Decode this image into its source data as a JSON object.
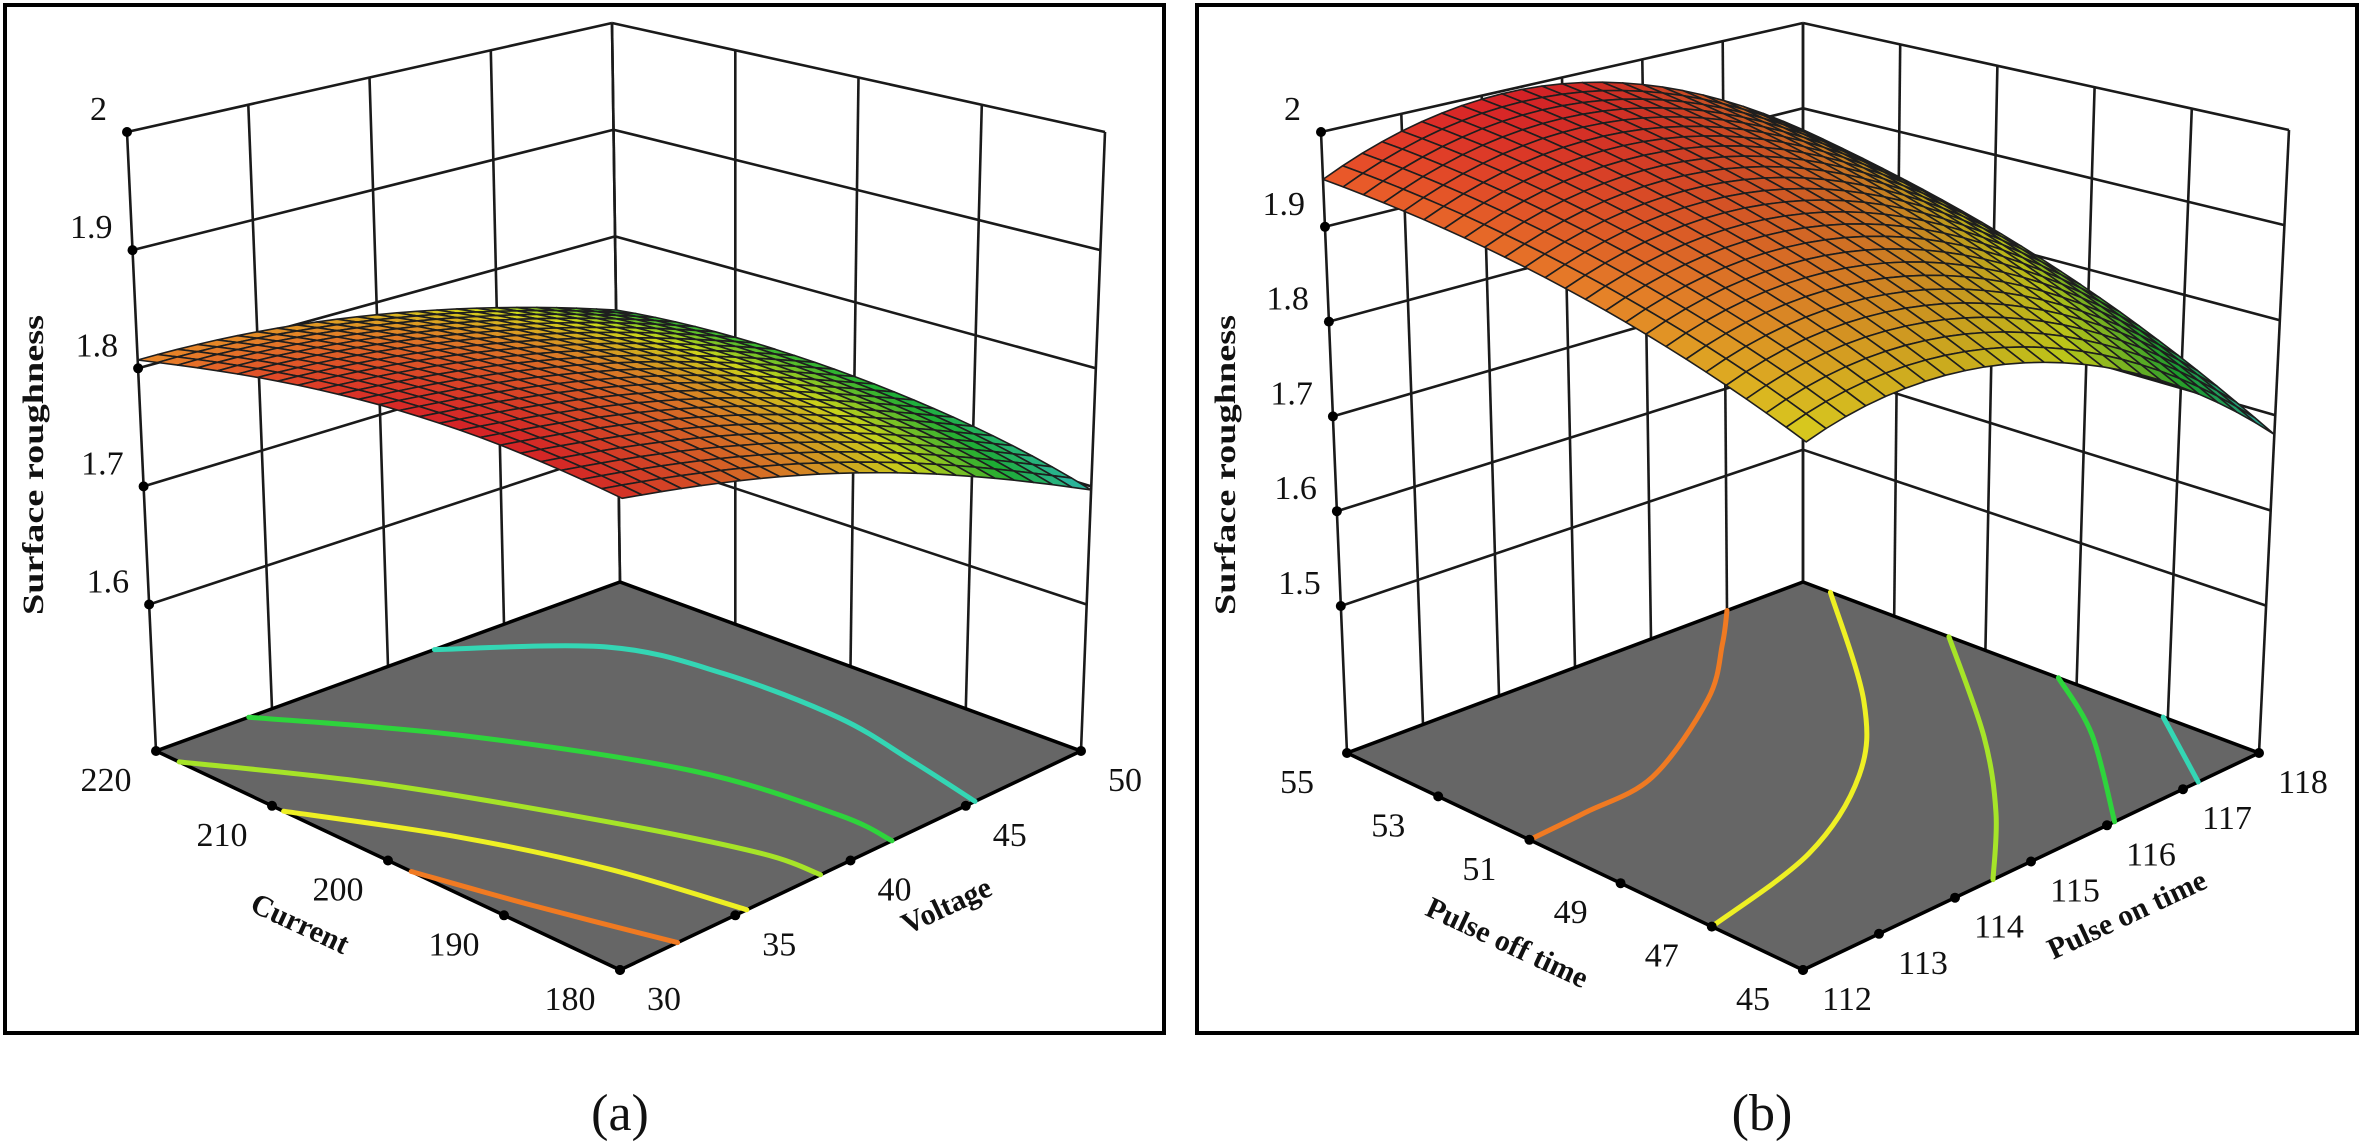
{
  "colormap": [
    "#35d8d0",
    "#22c83a",
    "#e6f01e",
    "#f2882a",
    "#e8242a"
  ],
  "chart_data": [
    {
      "type": "surface",
      "caption": "(a)",
      "zlabel": "Surface roughness",
      "xlabel": "Current",
      "ylabel": "Voltage",
      "x_ticks": [
        "180",
        "190",
        "200",
        "210",
        "220"
      ],
      "y_ticks": [
        "30",
        "35",
        "40",
        "45",
        "50"
      ],
      "z_ticks": [
        "1.6",
        "1.7",
        "1.8",
        "1.9",
        "2"
      ],
      "zlim": [
        1.476,
        2
      ],
      "grid": {
        "x": [
          180,
          190,
          200,
          210,
          220
        ],
        "y": [
          30,
          35,
          40,
          45,
          50
        ],
        "z": [
          [
            1.84,
            1.819,
            1.789,
            1.748,
            1.697
          ],
          [
            1.847,
            1.83,
            1.804,
            1.767,
            1.721
          ],
          [
            1.844,
            1.831,
            1.809,
            1.776,
            1.734
          ],
          [
            1.83,
            1.822,
            1.804,
            1.776,
            1.738
          ],
          [
            1.807,
            1.803,
            1.789,
            1.765,
            1.731
          ]
        ]
      },
      "contours": [
        {
          "color": "#f07a22",
          "points": [
            [
              198,
              30
            ],
            [
              189.7,
              31.1
            ],
            [
              180,
              32.5
            ]
          ]
        },
        {
          "color": "#eef024",
          "points": [
            [
              209,
              30
            ],
            [
              199.6,
              32.7
            ],
            [
              190,
              34.5
            ],
            [
              180,
              35.5
            ]
          ]
        },
        {
          "color": "#a6e428",
          "points": [
            [
              218,
              30
            ],
            [
              208,
              33.6
            ],
            [
              194.6,
              36.8
            ],
            [
              184.8,
              38.5
            ],
            [
              180,
              38.7
            ]
          ]
        },
        {
          "color": "#2ed43c",
          "points": [
            [
              220,
              34
            ],
            [
              209.5,
              38
            ],
            [
              196,
              41.2
            ],
            [
              185,
              42
            ],
            [
              180,
              41.8
            ]
          ]
        },
        {
          "color": "#34d6b4",
          "points": [
            [
              220,
              42
            ],
            [
              213,
              46
            ],
            [
              205,
              47
            ],
            [
              195,
              47
            ],
            [
              187,
              46.2
            ],
            [
              180,
              45.4
            ]
          ]
        }
      ]
    },
    {
      "type": "surface",
      "caption": "(b)",
      "zlabel": "Surface roughness",
      "xlabel": "Pulse off time",
      "ylabel": "Pulse on time",
      "x_ticks": [
        "45",
        "47",
        "49",
        "51",
        "53",
        "55"
      ],
      "y_ticks": [
        "112",
        "113",
        "114",
        "115",
        "116",
        "117",
        "118"
      ],
      "z_ticks": [
        "1.5",
        "1.6",
        "1.7",
        "1.8",
        "1.9",
        "2"
      ],
      "zlim": [
        1.345,
        2
      ],
      "grid": {
        "x": [
          45,
          47.5,
          50,
          52.5,
          55
        ],
        "y": [
          112,
          113.5,
          115,
          116.5,
          118
        ],
        "z": [
          [
            1.85,
            1.868,
            1.845,
            1.783,
            1.68
          ],
          [
            1.89,
            1.914,
            1.897,
            1.84,
            1.744
          ],
          [
            1.92,
            1.949,
            1.939,
            1.888,
            1.798
          ],
          [
            1.94,
            1.975,
            1.971,
            1.926,
            1.841
          ],
          [
            1.95,
            1.991,
            1.993,
            1.954,
            1.875
          ]
        ]
      },
      "contours": [
        {
          "color": "#f07a22",
          "points": [
            [
              55,
              117.0
            ],
            [
              54.1,
              116.4
            ],
            [
              52.75,
              115.4
            ],
            [
              51.3,
              113.8
            ],
            [
              51.1,
              112.8
            ],
            [
              51,
              112
            ]
          ]
        },
        {
          "color": "#eef024",
          "points": [
            [
              54.4,
              118
            ],
            [
              51,
              116.4
            ],
            [
              49.1,
              115.2
            ],
            [
              47.7,
              113.7
            ],
            [
              47,
              112
            ]
          ]
        },
        {
          "color": "#a6e428",
          "points": [
            [
              51.8,
              118
            ],
            [
              48.7,
              116.6
            ],
            [
              46.6,
              115.5
            ],
            [
              45,
              114.5
            ]
          ]
        },
        {
          "color": "#2ed43c",
          "points": [
            [
              49.4,
              118
            ],
            [
              47.5,
              117.3
            ],
            [
              45,
              116.1
            ]
          ]
        },
        {
          "color": "#34d6b4",
          "points": [
            [
              47.1,
              118
            ],
            [
              45,
              117.2
            ]
          ]
        }
      ]
    }
  ]
}
